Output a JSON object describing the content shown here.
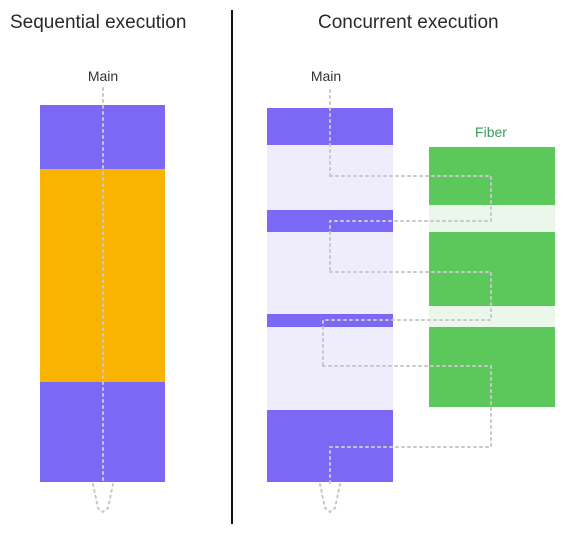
{
  "titles": {
    "sequential": "Sequential execution",
    "concurrent": "Concurrent execution"
  },
  "lanes": {
    "main_left": "Main",
    "main_right": "Main",
    "fiber": "Fiber"
  },
  "colors": {
    "main_block": "#7b68f5",
    "blocking_work": "#f8b400",
    "idle_main": "#efedfc",
    "fiber_block": "#5cc85c",
    "fiber_idle": "#eaf7ea",
    "fiber_label": "#3a9a5a",
    "thread_line": "#c8c8c8",
    "divider": "#111111"
  }
}
